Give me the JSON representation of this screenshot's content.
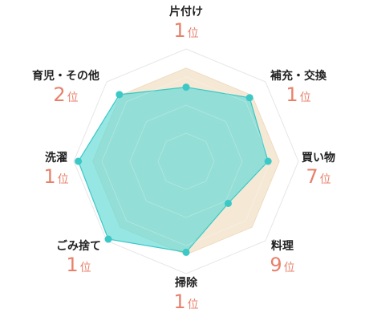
{
  "chart_data": {
    "type": "radar",
    "axes": [
      {
        "label": "片付け",
        "rank": "1",
        "rank_suffix": "位"
      },
      {
        "label": "補充・交換",
        "rank": "1",
        "rank_suffix": "位"
      },
      {
        "label": "買い物",
        "rank": "7",
        "rank_suffix": "位"
      },
      {
        "label": "料理",
        "rank": "9",
        "rank_suffix": "位"
      },
      {
        "label": "掃除",
        "rank": "1",
        "rank_suffix": "位"
      },
      {
        "label": "ごみ捨て",
        "rank": "1",
        "rank_suffix": "位"
      },
      {
        "label": "洗濯",
        "rank": "1",
        "rank_suffix": "位"
      },
      {
        "label": "育児・その他",
        "rank": "2",
        "rank_suffix": "位"
      }
    ],
    "series": [
      {
        "values": [
          0.83,
          0.83,
          0.83,
          0.83,
          0.83,
          0.83,
          0.83,
          0.83
        ],
        "color": "#F5E9D6"
      },
      {
        "values": [
          0.66,
          0.8,
          0.73,
          0.53,
          0.81,
          0.98,
          0.96,
          0.84
        ],
        "color": "#5ED8D6"
      }
    ],
    "rings": 4,
    "grid": true
  }
}
